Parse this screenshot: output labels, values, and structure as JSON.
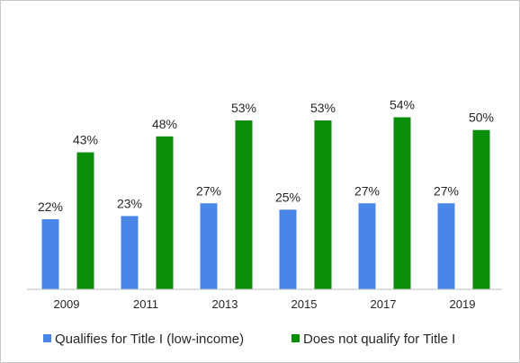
{
  "chart_data": {
    "type": "bar",
    "title": "",
    "xlabel": "",
    "ylabel": "",
    "categories": [
      "2009",
      "2011",
      "2013",
      "2015",
      "2017",
      "2019"
    ],
    "series": [
      {
        "name": "Qualifies for Title I (low-income)",
        "color": "#4a86e8",
        "values": [
          22,
          23,
          27,
          25,
          27,
          27
        ],
        "labels": [
          "22%",
          "23%",
          "27%",
          "25%",
          "27%",
          "27%"
        ]
      },
      {
        "name": "Does not qualify for Title I",
        "color": "#0b8f0b",
        "values": [
          43,
          48,
          53,
          53,
          54,
          50
        ],
        "labels": [
          "43%",
          "48%",
          "53%",
          "53%",
          "54%",
          "50%"
        ]
      }
    ],
    "ylim": [
      0,
      70
    ],
    "grid": false,
    "legend_position": "bottom"
  }
}
